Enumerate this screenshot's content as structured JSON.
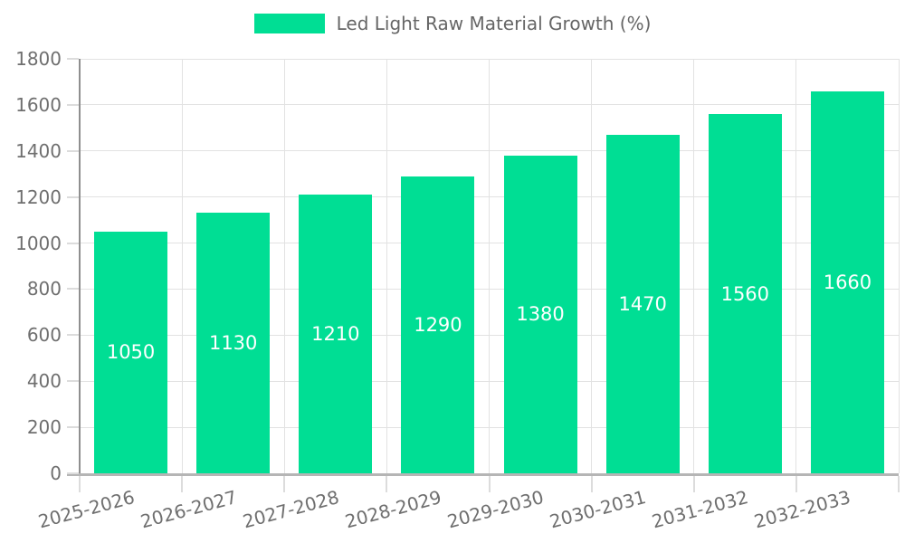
{
  "legend": {
    "label": "Led Light Raw Material Growth (%)"
  },
  "chart_data": {
    "type": "bar",
    "title": "",
    "xlabel": "",
    "ylabel": "",
    "categories": [
      "2025-2026",
      "2026-2027",
      "2027-2028",
      "2028-2029",
      "2029-2030",
      "2030-2031",
      "2031-2032",
      "2032-2033"
    ],
    "series": [
      {
        "name": "Led Light Raw Material Growth (%)",
        "values": [
          1050,
          1130,
          1210,
          1290,
          1380,
          1470,
          1560,
          1660
        ]
      }
    ],
    "value_labels": [
      "1050",
      "1130",
      "1210",
      "1290",
      "1380",
      "1470",
      "1560",
      "1660"
    ],
    "ylim": [
      0,
      1800
    ],
    "ytick_step": 200,
    "ytick_labels": [
      "0",
      "200",
      "400",
      "600",
      "800",
      "1000",
      "1200",
      "1400",
      "1600",
      "1800"
    ],
    "grid": true,
    "legend_position": "top",
    "colors": {
      "bar": "#00de94",
      "value_label": "#ffffff",
      "axis_label": "#6f6f6f",
      "legend_text": "#666666",
      "gridline": "#e2e2e2",
      "y_axis_line": "#8f8f8f",
      "x_axis_line": "#b5b5b5",
      "background": "#ffffff"
    }
  }
}
